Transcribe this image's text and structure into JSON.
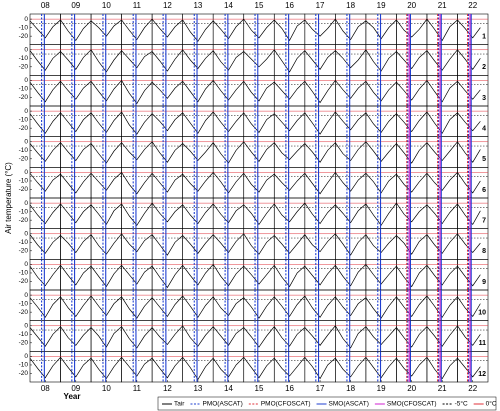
{
  "chart_data": {
    "type": "line",
    "ylabel": "Air temperature (°C)",
    "xlabel": "Year",
    "xlim": [
      2008,
      2023
    ],
    "ylim": [
      -30,
      6
    ],
    "yticks": [
      0,
      -10,
      -20
    ],
    "xticks": [
      {
        "value": 2008.5,
        "label": "08"
      },
      {
        "value": 2009.5,
        "label": "09"
      },
      {
        "value": 2010.5,
        "label": "10"
      },
      {
        "value": 2011.5,
        "label": "11"
      },
      {
        "value": 2012.5,
        "label": "12"
      },
      {
        "value": 2013.5,
        "label": "13"
      },
      {
        "value": 2014.5,
        "label": "14"
      },
      {
        "value": 2015.5,
        "label": "15"
      },
      {
        "value": 2016.5,
        "label": "16"
      },
      {
        "value": 2017.5,
        "label": "17"
      },
      {
        "value": 2018.5,
        "label": "18"
      },
      {
        "value": 2019.5,
        "label": "19"
      },
      {
        "value": 2020.5,
        "label": "20"
      },
      {
        "value": 2021.5,
        "label": "21"
      },
      {
        "value": 2022.5,
        "label": "22"
      }
    ],
    "x": [
      2008,
      2008.25,
      2008.5,
      2008.75,
      2009,
      2009.25,
      2009.5,
      2009.75,
      2010,
      2010.25,
      2010.5,
      2010.75,
      2011,
      2011.25,
      2011.5,
      2011.75,
      2012,
      2012.25,
      2012.5,
      2012.75,
      2013,
      2013.25,
      2013.5,
      2013.75,
      2014,
      2014.25,
      2014.5,
      2014.75,
      2015,
      2015.25,
      2015.5,
      2015.75,
      2016,
      2016.25,
      2016.5,
      2016.75,
      2017,
      2017.25,
      2017.5,
      2017.75,
      2018,
      2018.25,
      2018.5,
      2018.75,
      2019,
      2019.25,
      2019.5,
      2019.75,
      2020,
      2020.25,
      2020.5,
      2020.75,
      2021,
      2021.25,
      2021.5,
      2021.75,
      2022,
      2022.25,
      2022.5,
      2022.75
    ],
    "line_name": "Tair",
    "line_color": "#000000",
    "panels": [
      {
        "label": "1",
        "values": [
          -2,
          -12,
          -22,
          -9,
          -1,
          -14,
          -25,
          -11,
          -2,
          -10,
          -20,
          -8,
          -1,
          -13,
          -24,
          -10,
          0,
          -11,
          -21,
          -9,
          -1,
          -15,
          -26,
          -12,
          -2,
          -12,
          -23,
          -9,
          0,
          -13,
          -22,
          -10,
          -1,
          -11,
          -25,
          -8,
          -1,
          -12,
          -20,
          -11,
          0,
          -14,
          -24,
          -9,
          -2,
          -10,
          -23,
          -10,
          -1,
          -13,
          -21,
          -12,
          0,
          -12,
          -25,
          -9,
          -1,
          -11,
          -22,
          -10
        ]
      },
      {
        "label": "2",
        "values": [
          -1,
          -13,
          -24,
          -10,
          -2,
          -12,
          -23,
          -9,
          0,
          -14,
          -26,
          -12,
          -1,
          -11,
          -21,
          -8,
          -2,
          -13,
          -25,
          -11,
          0,
          -12,
          -22,
          -10,
          -1,
          -14,
          -24,
          -9,
          -2,
          -11,
          -20,
          -11,
          0,
          -13,
          -26,
          -10,
          -1,
          -12,
          -23,
          -9,
          -1,
          -10,
          -21,
          -12,
          0,
          -14,
          -25,
          -10,
          -2,
          -12,
          -22,
          -9,
          -1,
          -13,
          -24,
          -11,
          0,
          -11,
          -23,
          -10
        ]
      },
      {
        "label": "3",
        "values": [
          -2,
          -14,
          -25,
          -11,
          -1,
          -12,
          -22,
          -9,
          -1,
          -13,
          -24,
          -10,
          0,
          -15,
          -27,
          -12,
          -2,
          -11,
          -21,
          -9,
          -1,
          -13,
          -25,
          -10,
          0,
          -12,
          -23,
          -11,
          -1,
          -14,
          -24,
          -9,
          -2,
          -12,
          -22,
          -10,
          -1,
          -13,
          -26,
          -12,
          0,
          -11,
          -21,
          -9,
          -1,
          -14,
          -24,
          -11,
          -2,
          -12,
          -23,
          -10,
          0,
          -13,
          -25,
          -9,
          -1,
          -12,
          -22,
          -11
        ]
      },
      {
        "label": "4",
        "values": [
          -3,
          -15,
          -26,
          -12,
          -2,
          -13,
          -24,
          -10,
          -2,
          -14,
          -25,
          -11,
          -1,
          -16,
          -27,
          -13,
          -3,
          -12,
          -23,
          -10,
          -2,
          -14,
          -26,
          -11,
          -1,
          -13,
          -24,
          -12,
          -2,
          -15,
          -25,
          -10,
          -3,
          -13,
          -23,
          -11,
          -2,
          -14,
          -27,
          -13,
          -1,
          -12,
          -22,
          -10,
          -2,
          -15,
          -25,
          -12,
          -3,
          -13,
          -24,
          -11,
          -1,
          -14,
          -26,
          -10,
          -2,
          -13,
          -23,
          -12
        ]
      },
      {
        "label": "5",
        "values": [
          -2,
          -13,
          -23,
          -10,
          -1,
          -12,
          -22,
          -9,
          -2,
          -14,
          -25,
          -11,
          -1,
          -12,
          -21,
          -9,
          0,
          -13,
          -24,
          -10,
          -2,
          -11,
          -22,
          -12,
          -1,
          -14,
          -25,
          -10,
          0,
          -12,
          -23,
          -9,
          -1,
          -13,
          -21,
          -11,
          -2,
          -12,
          -24,
          -10,
          -1,
          -14,
          -22,
          -9,
          0,
          -11,
          -23,
          -12,
          -2,
          -13,
          -25,
          -10,
          -1,
          -12,
          -22,
          -11,
          0,
          -13,
          -24,
          -9
        ]
      },
      {
        "label": "6",
        "values": [
          -1,
          -12,
          -22,
          -9,
          -2,
          -13,
          -24,
          -11,
          -1,
          -11,
          -21,
          -8,
          0,
          -14,
          -25,
          -12,
          -1,
          -12,
          -23,
          -9,
          -2,
          -13,
          -22,
          -10,
          0,
          -11,
          -24,
          -11,
          -1,
          -14,
          -23,
          -9,
          -2,
          -12,
          -21,
          -10,
          -1,
          -13,
          -25,
          -12,
          0,
          -12,
          -22,
          -9,
          -1,
          -11,
          -24,
          -10,
          -2,
          -14,
          -23,
          -11,
          -1,
          -12,
          -21,
          -9,
          0,
          -13,
          -24,
          -10
        ]
      },
      {
        "label": "7",
        "values": [
          -2,
          -14,
          -24,
          -11,
          -1,
          -12,
          -23,
          -10,
          -2,
          -13,
          -25,
          -9,
          -1,
          -15,
          -26,
          -12,
          0,
          -12,
          -22,
          -10,
          -2,
          -14,
          -24,
          -11,
          -1,
          -13,
          -23,
          -9,
          -2,
          -12,
          -25,
          -12,
          -1,
          -14,
          -22,
          -10,
          0,
          -13,
          -24,
          -11,
          -2,
          -12,
          -23,
          -9,
          -1,
          -14,
          -26,
          -12,
          0,
          -13,
          -22,
          -10,
          -2,
          -12,
          -24,
          -11,
          -1,
          -14,
          -25,
          -9
        ]
      },
      {
        "label": "8",
        "values": [
          -1,
          -13,
          -23,
          -10,
          -2,
          -11,
          -22,
          -9,
          -1,
          -14,
          -24,
          -11,
          0,
          -12,
          -21,
          -8,
          -1,
          -13,
          -25,
          -10,
          -2,
          -12,
          -23,
          -11,
          -1,
          -11,
          -22,
          -9,
          0,
          -14,
          -24,
          -10,
          -2,
          -12,
          -23,
          -12,
          -1,
          -13,
          -21,
          -9,
          0,
          -12,
          -25,
          -10,
          -1,
          -14,
          -22,
          -11,
          -2,
          -11,
          -24,
          -9,
          -1,
          -13,
          -23,
          -10,
          0,
          -12,
          -22,
          -11
        ]
      },
      {
        "label": "9",
        "values": [
          -2,
          -15,
          -25,
          -12,
          -1,
          -13,
          -24,
          -10,
          -2,
          -14,
          -26,
          -11,
          -1,
          -12,
          -23,
          -9,
          -2,
          -15,
          -27,
          -12,
          -1,
          -13,
          -24,
          -10,
          0,
          -14,
          -25,
          -11,
          -2,
          -12,
          -23,
          -12,
          -1,
          -15,
          -26,
          -10,
          -2,
          -13,
          -24,
          -11,
          -1,
          -14,
          -25,
          -9,
          0,
          -12,
          -23,
          -12,
          -2,
          -15,
          -26,
          -10,
          -1,
          -13,
          -24,
          -11,
          -2,
          -14,
          -25,
          -12
        ]
      },
      {
        "label": "10",
        "values": [
          -3,
          -14,
          -26,
          -11,
          -2,
          -15,
          -25,
          -12,
          -1,
          -13,
          -24,
          -10,
          -2,
          -16,
          -27,
          -13,
          -3,
          -14,
          -25,
          -11,
          -1,
          -13,
          -26,
          -12,
          -2,
          -15,
          -24,
          -10,
          -3,
          -14,
          -27,
          -13,
          -2,
          -13,
          -25,
          -11,
          -1,
          -15,
          -26,
          -12,
          -2,
          -14,
          -24,
          -10,
          -3,
          -16,
          -27,
          -13,
          -2,
          -14,
          -25,
          -11,
          -1,
          -13,
          -26,
          -12,
          -2,
          -15,
          -25,
          -10
        ]
      },
      {
        "label": "11",
        "values": [
          -2,
          -13,
          -24,
          -10,
          -1,
          -14,
          -23,
          -11,
          -2,
          -12,
          -25,
          -9,
          -1,
          -15,
          -26,
          -12,
          -2,
          -13,
          -22,
          -10,
          0,
          -14,
          -24,
          -11,
          -1,
          -12,
          -23,
          -9,
          -2,
          -13,
          -25,
          -12,
          -1,
          -14,
          -24,
          -10,
          -2,
          -12,
          -23,
          -11,
          0,
          -15,
          -26,
          -9,
          -1,
          -13,
          -22,
          -12,
          -2,
          -14,
          -25,
          -10,
          -1,
          -12,
          -24,
          -11,
          0,
          -13,
          -23,
          -10
        ]
      },
      {
        "label": "12",
        "values": [
          -2,
          -14,
          -25,
          -11,
          -1,
          -13,
          -24,
          -10,
          -2,
          -15,
          -26,
          -12,
          -1,
          -12,
          -23,
          -9,
          -2,
          -14,
          -25,
          -11,
          -1,
          -13,
          -27,
          -12,
          -2,
          -15,
          -24,
          -10,
          -1,
          -13,
          -25,
          -11,
          -2,
          -14,
          -23,
          -12,
          -1,
          -12,
          -26,
          -10,
          -2,
          -15,
          -24,
          -11,
          -1,
          -13,
          -25,
          -12,
          -2,
          -14,
          -23,
          -10,
          -1,
          -15,
          -26,
          -11,
          -2,
          -13,
          -24,
          -12
        ]
      }
    ],
    "markers": [
      {
        "name": "PMO(ASCAT)",
        "color": "#1f3fd0",
        "dash": true,
        "x": [
          2008.38,
          2009.37,
          2010.39,
          2011.38,
          2012.36,
          2013.38,
          2014.39,
          2015.37,
          2016.38,
          2017.36,
          2018.38,
          2019.39,
          2020.37,
          2021.38,
          2022.36
        ]
      },
      {
        "name": "PMO(CFOSCAT)",
        "color": "#e0303a",
        "dash": true,
        "x": [
          2020.34,
          2021.35,
          2022.33
        ]
      },
      {
        "name": "SMO(ASCAT)",
        "color": "#1f3fd0",
        "dash": false,
        "x": [
          2008.47,
          2009.46,
          2010.48,
          2011.47,
          2012.45,
          2013.47,
          2014.48,
          2015.46,
          2016.47,
          2017.45,
          2018.47,
          2019.48,
          2020.46,
          2021.47,
          2022.45
        ]
      },
      {
        "name": "SMO(CFOSCAT)",
        "color": "#d020d0",
        "dash": false,
        "x": [
          2020.42,
          2021.43,
          2022.41
        ]
      }
    ],
    "reflines": [
      {
        "name": "-5°C",
        "value": -5,
        "color": "#000000",
        "dash": true
      },
      {
        "name": "0°C",
        "value": 0,
        "color": "#e0303a",
        "dash": false
      }
    ]
  }
}
